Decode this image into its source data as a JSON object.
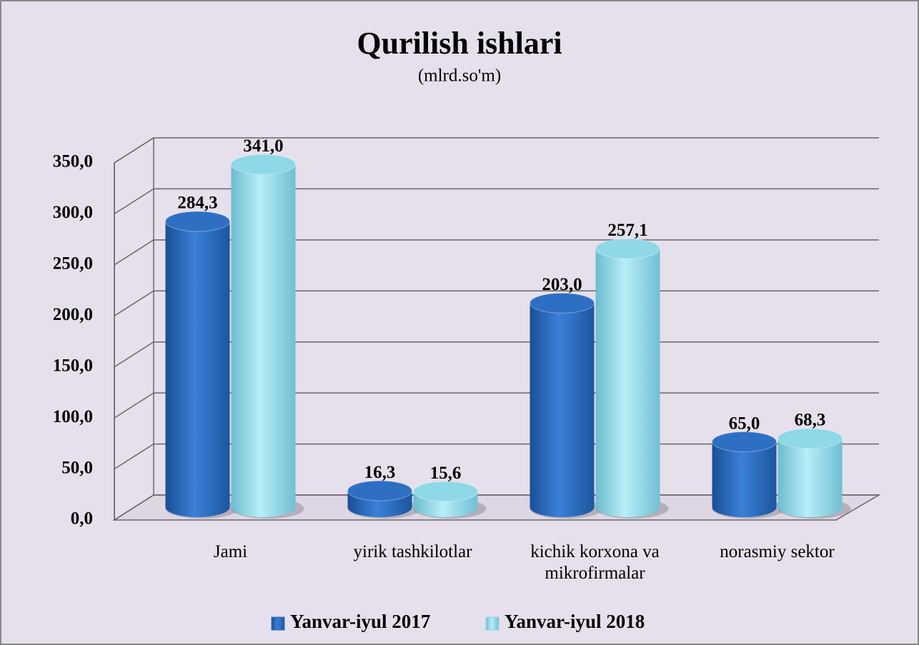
{
  "chart_data": {
    "type": "bar3d",
    "title": "Qurilish ishlari",
    "subtitle": "(mlrd.so'm)",
    "categories": [
      "Jami",
      "yirik tashkilotlar",
      "kichik korxona va mikrofirmalar",
      "norasmiy sektor"
    ],
    "series": [
      {
        "name": "Yanvar-iyul 2017",
        "color": "#2e6fc4",
        "values": [
          284.3,
          16.3,
          203.0,
          65.0
        ],
        "value_labels": [
          "284,3",
          "16,3",
          "203,0",
          "65,0"
        ]
      },
      {
        "name": "Yanvar-iyul 2018",
        "color": "#8fd8e8",
        "values": [
          341.0,
          15.6,
          257.1,
          68.3
        ],
        "value_labels": [
          "341,0",
          "15,6",
          "257,1",
          "68,3"
        ]
      }
    ],
    "ylim": [
      0,
      350
    ],
    "yticks": [
      {
        "value": 0,
        "label": "0,0"
      },
      {
        "value": 50,
        "label": "50,0"
      },
      {
        "value": 100,
        "label": "100,0"
      },
      {
        "value": 150,
        "label": "150,0"
      },
      {
        "value": 200,
        "label": "200,0"
      },
      {
        "value": 250,
        "label": "250,0"
      },
      {
        "value": 300,
        "label": "300,0"
      },
      {
        "value": 350,
        "label": "350,0"
      }
    ],
    "grid": true,
    "legend": "bottom"
  }
}
